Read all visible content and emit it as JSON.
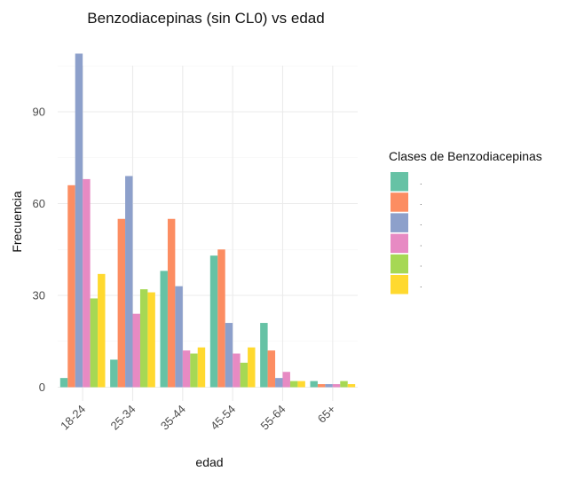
{
  "chart_data": {
    "type": "bar",
    "title": "Benzodiacepinas (sin CL0) vs edad",
    "xlabel": "edad",
    "ylabel": "Frecuencia",
    "categories": [
      "18-24",
      "25-34",
      "35-44",
      "45-54",
      "55-64",
      "65+"
    ],
    "ylim": [
      0,
      110
    ],
    "yticks": [
      0,
      30,
      60,
      90
    ],
    "grid": true,
    "legend": {
      "title": "Clases de Benzodiacepinas",
      "position": "right"
    },
    "series": [
      {
        "label": ".",
        "color": "#66C2A5",
        "values": [
          3,
          9,
          38,
          43,
          21,
          2
        ]
      },
      {
        "label": ".",
        "color": "#FC8D62",
        "values": [
          66,
          55,
          55,
          45,
          12,
          1
        ]
      },
      {
        "label": ".",
        "color": "#8DA0CB",
        "values": [
          109,
          69,
          33,
          21,
          3,
          1
        ]
      },
      {
        "label": ".",
        "color": "#E78AC3",
        "values": [
          68,
          24,
          12,
          11,
          5,
          1
        ]
      },
      {
        "label": ".",
        "color": "#A6D854",
        "values": [
          29,
          32,
          11,
          8,
          2,
          2
        ]
      },
      {
        "label": ".",
        "color": "#FFD92F",
        "values": [
          37,
          31,
          13,
          13,
          2,
          1
        ]
      }
    ]
  }
}
